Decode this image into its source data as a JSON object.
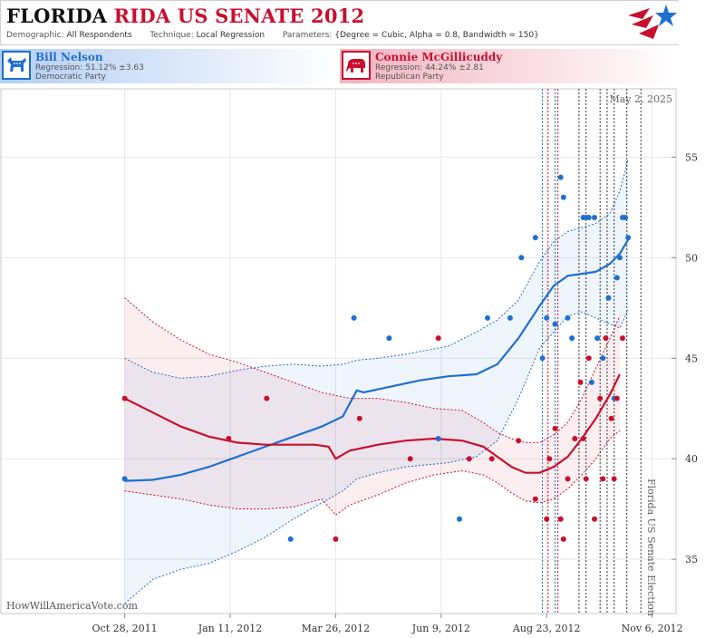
{
  "header": {
    "title_state": "FLORIDA",
    "title_rest": "RIDA US SENATE 2012",
    "demographic_label": "Demographic:",
    "demographic_value": "All Respondents",
    "technique_label": "Technique:",
    "technique_value": "Local Regression",
    "parameters_label": "Parameters:",
    "parameters_value": "{Degree = Cubic, Alpha = 0.8, Bandwidth = 150}"
  },
  "candidates": {
    "dem": {
      "name": "Bill Nelson",
      "regression": "Regression: 51.12% ±3.63",
      "party": "Democratic Party",
      "icon": "donkey-icon",
      "color": "#1f6fd1"
    },
    "rep": {
      "name": "Connie McGillicuddy",
      "regression": "Regression: 44.24% ±2.81",
      "party": "Republican Party",
      "icon": "elephant-icon",
      "color": "#c8102e"
    }
  },
  "chart_data": {
    "type": "scatter",
    "x_tick_labels": [
      "Oct 28, 2011",
      "Jan 11, 2012",
      "Mar 26, 2012",
      "Jun 9, 2012",
      "Aug 23, 2012",
      "Nov 6, 2012"
    ],
    "x_tick_days": [
      0,
      75,
      150,
      225,
      300,
      375
    ],
    "y_ticks": [
      35,
      40,
      45,
      50,
      55
    ],
    "ylim": [
      32.3,
      58.4
    ],
    "xlim": [
      -88,
      392
    ],
    "date_label": "May 2, 2025",
    "election_label": "Florida US Senate Election",
    "watermark": "HowWillAmericaVote.com",
    "vlines_blue": [
      297,
      306
    ],
    "vlines_red": [
      301,
      308
    ],
    "vlines_black": [
      323,
      328,
      338,
      343,
      348,
      357,
      367
    ],
    "series": [
      {
        "name": "Bill Nelson",
        "color": "#1f6fd1",
        "points": [
          [
            0,
            39
          ],
          [
            118,
            36
          ],
          [
            163,
            47
          ],
          [
            188,
            46
          ],
          [
            223,
            41
          ],
          [
            238,
            37
          ],
          [
            258,
            47
          ],
          [
            274,
            47
          ],
          [
            282,
            50
          ],
          [
            292,
            51
          ],
          [
            297,
            45
          ],
          [
            300,
            47
          ],
          [
            306,
            46.7
          ],
          [
            310,
            54
          ],
          [
            312,
            53
          ],
          [
            315,
            47
          ],
          [
            318,
            46
          ],
          [
            326,
            52
          ],
          [
            328,
            52
          ],
          [
            330,
            52
          ],
          [
            332,
            43.8
          ],
          [
            334,
            52
          ],
          [
            336,
            46
          ],
          [
            340,
            45
          ],
          [
            344,
            48
          ],
          [
            348,
            43
          ],
          [
            350,
            49
          ],
          [
            352,
            50
          ],
          [
            354,
            52
          ],
          [
            356,
            52
          ],
          [
            358,
            51
          ]
        ],
        "fit": [
          [
            0,
            38.9
          ],
          [
            20,
            38.95
          ],
          [
            40,
            39.2
          ],
          [
            60,
            39.6
          ],
          [
            80,
            40.1
          ],
          [
            100,
            40.6
          ],
          [
            120,
            41.1
          ],
          [
            140,
            41.6
          ],
          [
            155,
            42.1
          ],
          [
            165,
            43.4
          ],
          [
            170,
            43.3
          ],
          [
            190,
            43.6
          ],
          [
            210,
            43.9
          ],
          [
            230,
            44.1
          ],
          [
            250,
            44.2
          ],
          [
            265,
            44.7
          ],
          [
            280,
            46.0
          ],
          [
            295,
            47.6
          ],
          [
            305,
            48.6
          ],
          [
            315,
            49.1
          ],
          [
            325,
            49.2
          ],
          [
            335,
            49.3
          ],
          [
            345,
            49.7
          ],
          [
            352,
            50.2
          ],
          [
            358,
            50.9
          ]
        ],
        "upper": [
          [
            0,
            45
          ],
          [
            20,
            44.3
          ],
          [
            40,
            44.0
          ],
          [
            60,
            44.1
          ],
          [
            80,
            44.4
          ],
          [
            100,
            44.6
          ],
          [
            120,
            44.7
          ],
          [
            140,
            44.6
          ],
          [
            155,
            44.7
          ],
          [
            165,
            44.9
          ],
          [
            180,
            45.0
          ],
          [
            200,
            45.2
          ],
          [
            230,
            45.6
          ],
          [
            250,
            46.3
          ],
          [
            265,
            46.9
          ],
          [
            280,
            47.9
          ],
          [
            295,
            49.8
          ],
          [
            305,
            50.8
          ],
          [
            315,
            51.3
          ],
          [
            325,
            51.5
          ],
          [
            335,
            51.7
          ],
          [
            345,
            52.2
          ],
          [
            352,
            53.3
          ],
          [
            358,
            54.9
          ]
        ],
        "lower": [
          [
            0,
            32.8
          ],
          [
            20,
            34.0
          ],
          [
            40,
            34.5
          ],
          [
            60,
            34.8
          ],
          [
            80,
            35.4
          ],
          [
            100,
            36.1
          ],
          [
            120,
            37.0
          ],
          [
            140,
            37.8
          ],
          [
            155,
            38.4
          ],
          [
            165,
            39.0
          ],
          [
            180,
            39.3
          ],
          [
            200,
            39.6
          ],
          [
            230,
            39.8
          ],
          [
            250,
            40.1
          ],
          [
            265,
            40.9
          ],
          [
            280,
            43.0
          ],
          [
            295,
            45.5
          ],
          [
            305,
            46.3
          ],
          [
            315,
            47.1
          ],
          [
            325,
            47.3
          ],
          [
            335,
            47.0
          ],
          [
            345,
            46.7
          ],
          [
            352,
            46.5
          ],
          [
            358,
            47.4
          ]
        ]
      },
      {
        "name": "Connie McGillicuddy",
        "color": "#c8102e",
        "points": [
          [
            0,
            43
          ],
          [
            74,
            41
          ],
          [
            101,
            43
          ],
          [
            150,
            36
          ],
          [
            167,
            42
          ],
          [
            203,
            40
          ],
          [
            223,
            46
          ],
          [
            245,
            40
          ],
          [
            261,
            40
          ],
          [
            280,
            40.9
          ],
          [
            292,
            38
          ],
          [
            300,
            37
          ],
          [
            302,
            40
          ],
          [
            306,
            41.5
          ],
          [
            310,
            37
          ],
          [
            312,
            36
          ],
          [
            315,
            39
          ],
          [
            320,
            41
          ],
          [
            324,
            43.8
          ],
          [
            326,
            41
          ],
          [
            328,
            39
          ],
          [
            330,
            45
          ],
          [
            334,
            37
          ],
          [
            338,
            43
          ],
          [
            340,
            39
          ],
          [
            342,
            46
          ],
          [
            346,
            42
          ],
          [
            348,
            39
          ],
          [
            350,
            43
          ],
          [
            354,
            46
          ]
        ],
        "fit": [
          [
            0,
            43.0
          ],
          [
            20,
            42.3
          ],
          [
            40,
            41.6
          ],
          [
            60,
            41.1
          ],
          [
            80,
            40.8
          ],
          [
            100,
            40.7
          ],
          [
            120,
            40.7
          ],
          [
            135,
            40.7
          ],
          [
            145,
            40.6
          ],
          [
            150,
            40.0
          ],
          [
            160,
            40.4
          ],
          [
            180,
            40.7
          ],
          [
            200,
            40.9
          ],
          [
            220,
            41.0
          ],
          [
            240,
            40.9
          ],
          [
            255,
            40.6
          ],
          [
            265,
            40.1
          ],
          [
            275,
            39.6
          ],
          [
            285,
            39.3
          ],
          [
            295,
            39.3
          ],
          [
            305,
            39.6
          ],
          [
            315,
            40.1
          ],
          [
            325,
            41.0
          ],
          [
            335,
            42.0
          ],
          [
            345,
            43.2
          ],
          [
            352,
            44.2
          ]
        ],
        "upper": [
          [
            0,
            48.0
          ],
          [
            20,
            46.8
          ],
          [
            40,
            45.9
          ],
          [
            60,
            45.2
          ],
          [
            80,
            44.8
          ],
          [
            100,
            44.3
          ],
          [
            120,
            43.8
          ],
          [
            140,
            43.3
          ],
          [
            160,
            43.0
          ],
          [
            180,
            43.0
          ],
          [
            200,
            42.8
          ],
          [
            220,
            42.5
          ],
          [
            240,
            42.4
          ],
          [
            255,
            41.8
          ],
          [
            265,
            41.3
          ],
          [
            275,
            41.0
          ],
          [
            285,
            40.8
          ],
          [
            295,
            40.8
          ],
          [
            305,
            41.2
          ],
          [
            315,
            41.8
          ],
          [
            325,
            43.0
          ],
          [
            335,
            44.5
          ],
          [
            345,
            46.0
          ],
          [
            352,
            47.1
          ]
        ],
        "lower": [
          [
            0,
            38.4
          ],
          [
            20,
            38.2
          ],
          [
            40,
            38.0
          ],
          [
            60,
            37.7
          ],
          [
            80,
            37.5
          ],
          [
            100,
            37.5
          ],
          [
            120,
            37.6
          ],
          [
            140,
            38.0
          ],
          [
            150,
            37.2
          ],
          [
            160,
            37.7
          ],
          [
            180,
            38.2
          ],
          [
            200,
            38.8
          ],
          [
            220,
            39.2
          ],
          [
            240,
            39.4
          ],
          [
            255,
            39.2
          ],
          [
            265,
            38.8
          ],
          [
            275,
            38.3
          ],
          [
            285,
            37.9
          ],
          [
            295,
            37.8
          ],
          [
            305,
            38.0
          ],
          [
            315,
            38.5
          ],
          [
            325,
            39.2
          ],
          [
            335,
            40.0
          ],
          [
            345,
            41.0
          ],
          [
            352,
            41.4
          ]
        ]
      }
    ]
  }
}
